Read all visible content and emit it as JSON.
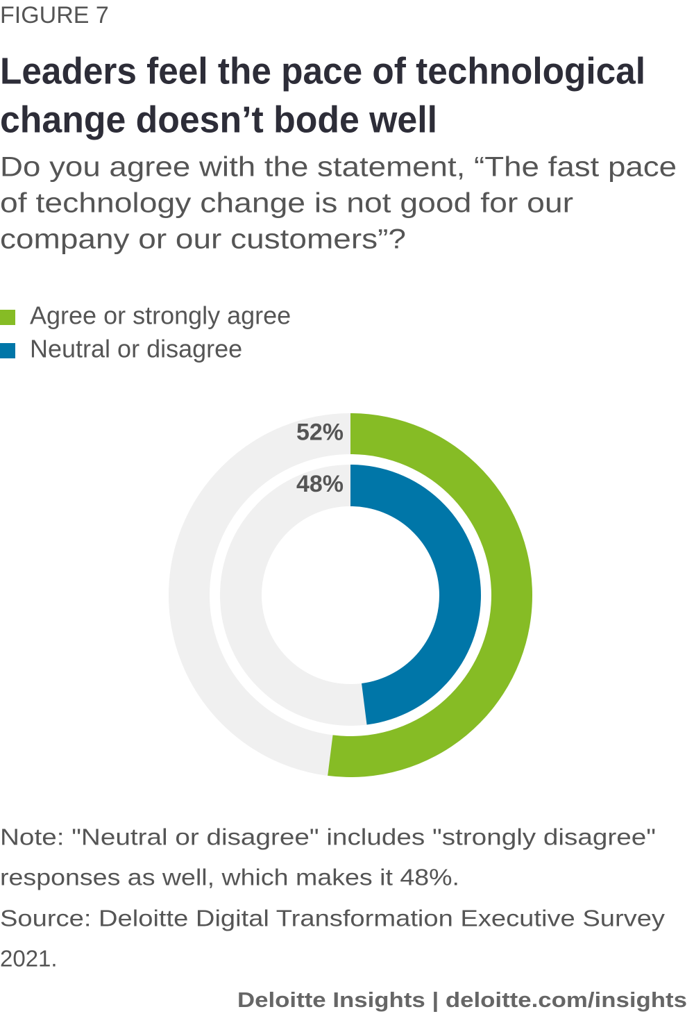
{
  "chart_data": {
    "type": "radial-bar",
    "figure_label": "FIGURE 7",
    "title": [
      "Leaders feel the pace of technological",
      "change doesn’t bode well"
    ],
    "subtitle": [
      "Do you agree with the statement, “The fast pace",
      "of technology change is not good for our",
      "company or our customers”?"
    ],
    "series": [
      {
        "name": "Agree or strongly agree",
        "color": "#86bc25",
        "values": [
          52
        ],
        "value_labels": [
          "52%"
        ]
      },
      {
        "name": "Neutral or disagree",
        "color": "#0076a8",
        "values": [
          48
        ],
        "value_labels": [
          "48%"
        ]
      }
    ],
    "ylim": [
      0,
      100
    ],
    "track_color": "#f0f0f0",
    "note": [
      "Note: \"Neutral or disagree\" includes \"strongly disagree\"",
      "responses as well, which makes it 48%.",
      "Source: Deloitte Digital Transformation Executive Survey",
      "2021."
    ],
    "footer": "Deloitte Insights | deloitte.com/insights"
  }
}
